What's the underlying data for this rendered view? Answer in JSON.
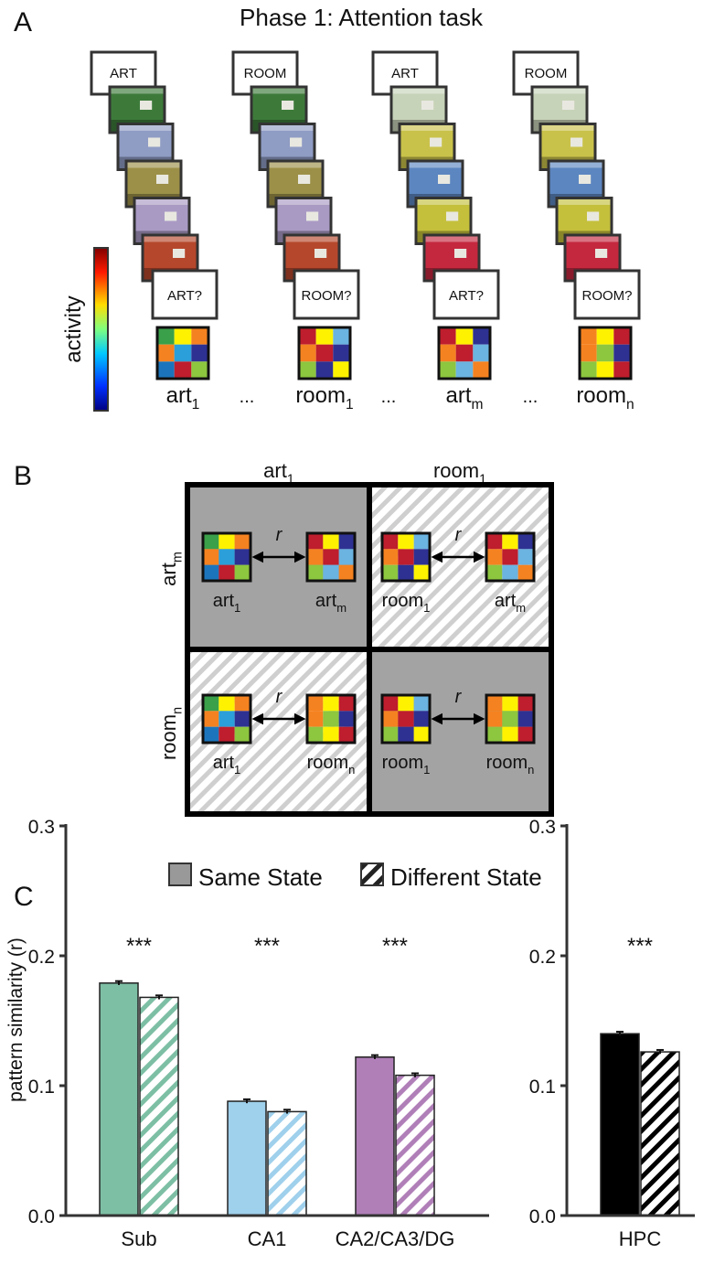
{
  "panel_a": {
    "label": "A",
    "title": "Phase 1: Attention task",
    "colorbar_label": "activity",
    "ellipsis": "...",
    "trials": [
      {
        "cue": "ART",
        "probe": "ART?",
        "pattern_name": "art",
        "pattern_index": "1"
      },
      {
        "cue": "ROOM",
        "probe": "ROOM?",
        "pattern_name": "room",
        "pattern_index": "1"
      },
      {
        "cue": "ART",
        "probe": "ART?",
        "pattern_name": "art",
        "pattern_index": "m"
      },
      {
        "cue": "ROOM",
        "probe": "ROOM?",
        "pattern_name": "room",
        "pattern_index": "n"
      }
    ]
  },
  "panel_b": {
    "label": "B",
    "similarity_symbol": "r",
    "columns": [
      {
        "name": "art",
        "index": "1"
      },
      {
        "name": "room",
        "index": "1"
      }
    ],
    "rows": [
      {
        "name": "art",
        "index": "m"
      },
      {
        "name": "room",
        "index": "n"
      }
    ]
  },
  "panel_c": {
    "label": "C"
  },
  "chart_data": [
    {
      "type": "bar",
      "ylabel": "pattern similarity (r)",
      "categories": [
        "Sub",
        "CA1",
        "CA2/CA3/DG"
      ],
      "colors": [
        "#7dbfa5",
        "#9fd0ec",
        "#b07fb8"
      ],
      "annotations": [
        "***",
        "***",
        "***"
      ],
      "legend_color": "#999999",
      "series": [
        {
          "name": "Same State",
          "pattern": "solid",
          "values": [
            0.179,
            0.088,
            0.122
          ],
          "errors": [
            0.0015,
            0.0015,
            0.0015
          ]
        },
        {
          "name": "Different State",
          "pattern": "hatched",
          "values": [
            0.168,
            0.08,
            0.108
          ],
          "errors": [
            0.0015,
            0.0015,
            0.0015
          ]
        }
      ],
      "ylim": [
        0,
        0.3
      ],
      "yticks": [
        {
          "value": 0,
          "label": "0.0"
        },
        0.1,
        0.2,
        0.3
      ]
    },
    {
      "type": "bar",
      "categories": [
        "HPC"
      ],
      "colors": [
        "#000000"
      ],
      "annotations": [
        "***"
      ],
      "series": [
        {
          "pattern": "solid",
          "values": [
            0.14
          ],
          "errors": [
            0.0015
          ]
        },
        {
          "pattern": "hatched",
          "values": [
            0.126
          ],
          "errors": [
            0.0015
          ]
        }
      ],
      "ylim": [
        0,
        0.3
      ],
      "yticks": [
        {
          "value": 0,
          "label": "0.0"
        },
        0.1,
        0.2,
        0.3
      ]
    }
  ]
}
